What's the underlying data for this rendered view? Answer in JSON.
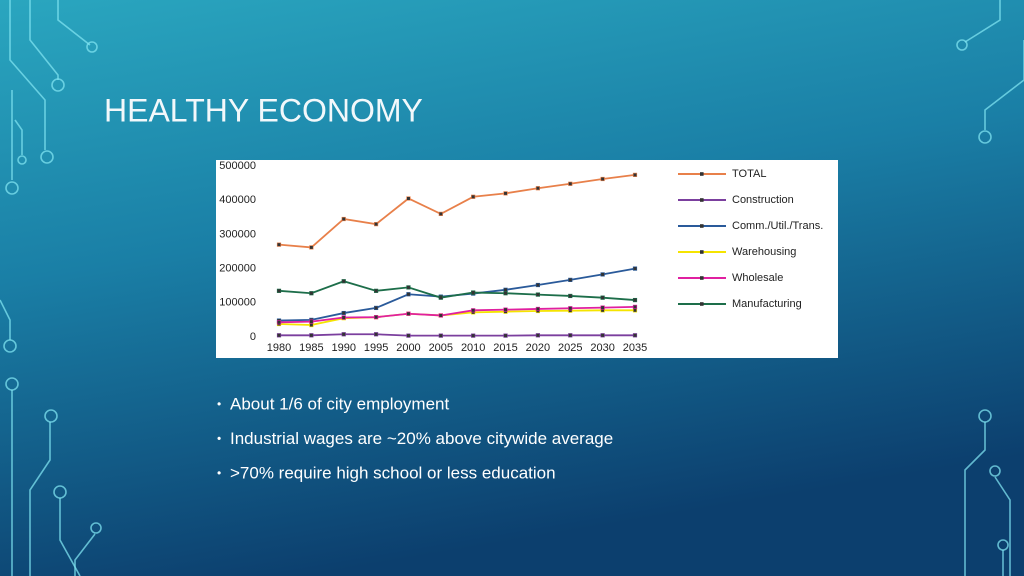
{
  "title": "HEALTHY ECONOMY",
  "bullets": [
    "About 1/6 of city employment",
    "Industrial wages are ~20% above citywide average",
    ">70% require high school or less education"
  ],
  "chart_data": {
    "type": "line",
    "x": [
      1980,
      1985,
      1990,
      1995,
      2000,
      2005,
      2010,
      2015,
      2020,
      2025,
      2030,
      2035
    ],
    "xlim": [
      1980,
      2035
    ],
    "xticks": [
      1980,
      1985,
      1990,
      1995,
      2000,
      2005,
      2010,
      2015,
      2020,
      2025,
      2030,
      2035
    ],
    "ylim": [
      0,
      500000
    ],
    "yticks": [
      0,
      100000,
      200000,
      300000,
      400000,
      500000
    ],
    "grid": false,
    "legend": "right",
    "series": [
      {
        "name": "TOTAL",
        "color": "#e8804a",
        "values": [
          270000,
          262000,
          345000,
          330000,
          405000,
          360000,
          410000,
          420000,
          435000,
          448000,
          462000,
          474000
        ]
      },
      {
        "name": "Construction",
        "color": "#7b3f9e",
        "values": [
          5000,
          5000,
          8000,
          8000,
          4000,
          4000,
          4000,
          4000,
          5000,
          5000,
          5000,
          5000
        ]
      },
      {
        "name": "Comm./Util./Trans.",
        "color": "#2a5a9a",
        "values": [
          48000,
          50000,
          70000,
          85000,
          125000,
          118000,
          127000,
          138000,
          152000,
          167000,
          183000,
          200000
        ]
      },
      {
        "name": "Warehousing",
        "color": "#f5e400",
        "values": [
          38000,
          35000,
          55000,
          58000,
          68000,
          63000,
          72000,
          74000,
          76000,
          77000,
          78000,
          78000
        ]
      },
      {
        "name": "Wholesale",
        "color": "#e020a0",
        "values": [
          43000,
          45000,
          57000,
          58000,
          68000,
          63000,
          78000,
          80000,
          82000,
          84000,
          86000,
          88000
        ]
      },
      {
        "name": "Manufacturing",
        "color": "#1d6e4a",
        "values": [
          135000,
          128000,
          163000,
          135000,
          145000,
          115000,
          130000,
          128000,
          124000,
          120000,
          115000,
          108000
        ]
      }
    ]
  }
}
